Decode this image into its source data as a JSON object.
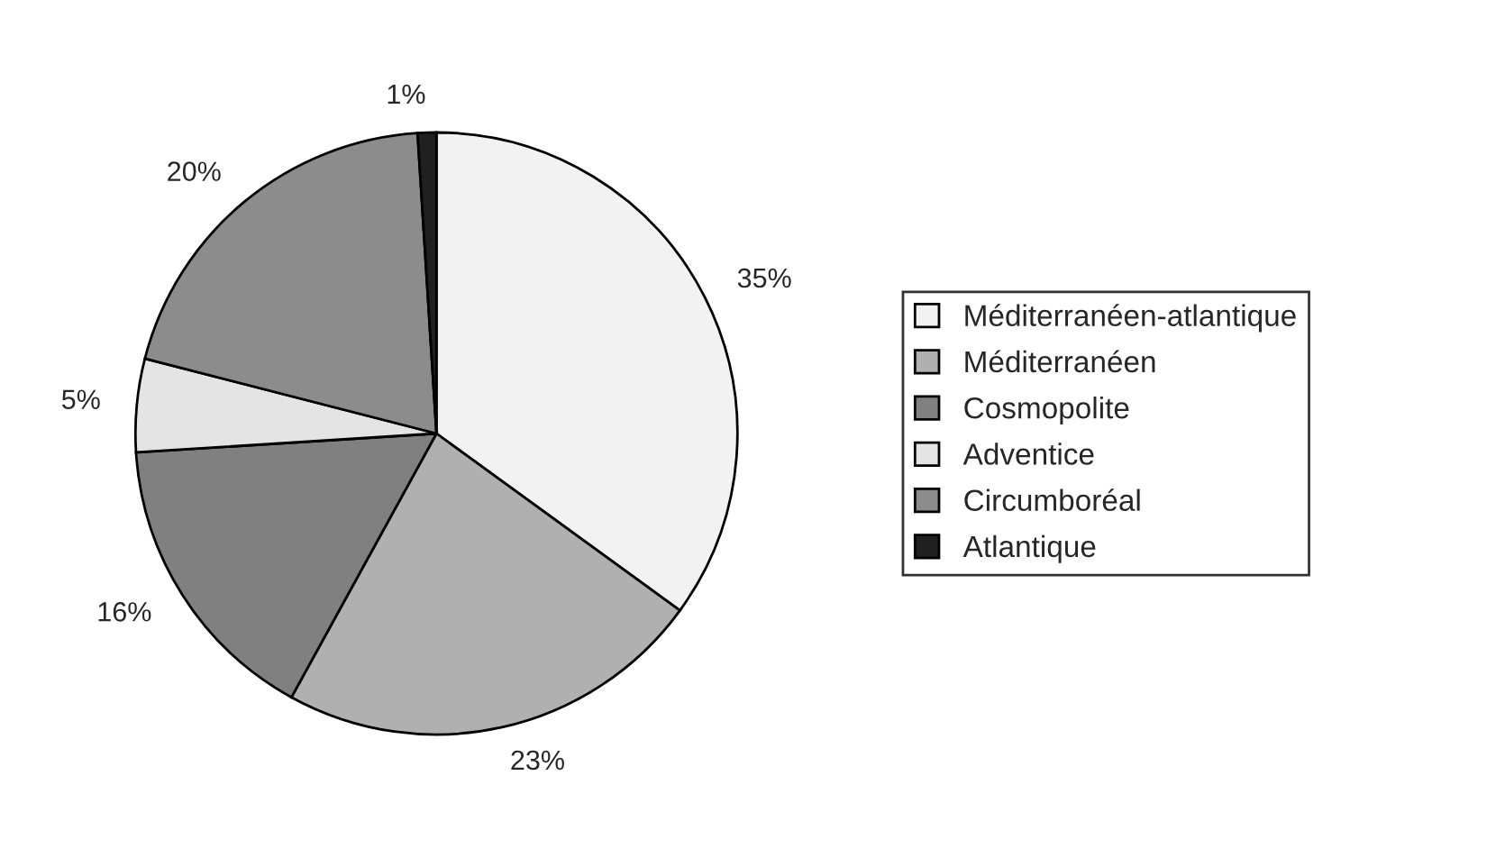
{
  "chart_data": {
    "type": "pie",
    "categories": [
      "Méditerranéen-atlantique",
      "Méditerranéen",
      "Cosmopolite",
      "Adventice",
      "Circumboréal",
      "Atlantique"
    ],
    "values": [
      35,
      23,
      16,
      5,
      20,
      1
    ],
    "value_labels": [
      "35%",
      "23%",
      "16%",
      "5%",
      "20%",
      "1%"
    ],
    "colors": [
      "#f2f2f2",
      "#b0b0b0",
      "#808080",
      "#e4e4e4",
      "#8c8c8c",
      "#202020"
    ],
    "legend": "right"
  }
}
